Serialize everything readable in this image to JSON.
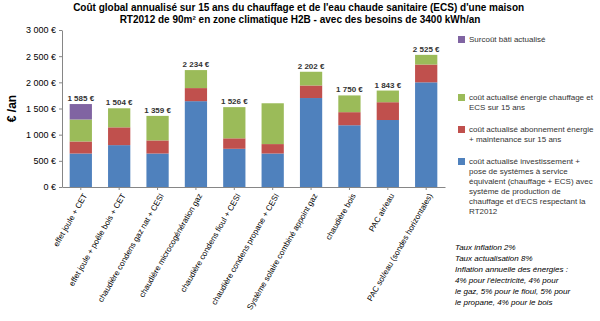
{
  "chart_data": {
    "type": "bar",
    "stacked": true,
    "title": "Coût global annualisé sur 15 ans du chauffage et de l'eau chaude sanitaire (ECS) d'une maison RT2012 de 90m² en zone climatique H2B - avec des besoins de 3400 kWh/an",
    "ylabel": "€ /an",
    "categories": [
      "effet joule + CET",
      "effet joule + poêle bois + CET",
      "chaudière condens gaz nat + CESI",
      "chaudière microcogénération gaz",
      "chaudière condens fioul + CESI",
      "chaudière condens propane + CESI",
      "Système solaire combiné appoint gaz",
      "chaudière bois",
      "PAC air/eau",
      "PAC sol/eau (sondes horizontales)"
    ],
    "series": [
      {
        "name": "coût actualisé investissement + pose de systèmes à service équivalent (chauffage + ECS) avec système de production de chauffage et d'ECS respectant la RT2012",
        "color": "#4f81bd",
        "values": [
          640,
          800,
          640,
          1640,
          730,
          640,
          1700,
          1180,
          1280,
          2000
        ]
      },
      {
        "name": "coût actualisé abonnement énergie + maintenance sur 15 ans",
        "color": "#c0504d",
        "values": [
          230,
          340,
          250,
          250,
          200,
          180,
          240,
          250,
          340,
          340
        ]
      },
      {
        "name": "coût actualisé énergie chauffage et ECS sur 15 ans",
        "color": "#9bbb59",
        "values": [
          420,
          364,
          469,
          344,
          596,
          780,
          262,
          320,
          223,
          185
        ]
      },
      {
        "name": "Surcoût bâti actualisé",
        "color": "#8064a2",
        "values": [
          295,
          null,
          null,
          null,
          null,
          null,
          null,
          null,
          null,
          null
        ]
      }
    ],
    "totals": [
      1585,
      1504,
      1359,
      2234,
      1526,
      null,
      2202,
      1750,
      1843,
      2525
    ],
    "total_labels": [
      "1 585 €",
      "1 504 €",
      "1 359 €",
      "2 234 €",
      "1 526 €",
      null,
      "2 202 €",
      "1 750 €",
      "1 843 €",
      "2 525 €"
    ],
    "ylim": [
      0,
      3000
    ],
    "yticks": [
      {
        "value": 0,
        "label": "0 €"
      },
      {
        "value": 500,
        "label": "500 €"
      },
      {
        "value": 1000,
        "label": "1 000 €"
      },
      {
        "value": 1500,
        "label": "1 500 €"
      },
      {
        "value": 2000,
        "label": "2 000 €"
      },
      {
        "value": 2500,
        "label": "2 500 €"
      },
      {
        "value": 3000,
        "label": "3 000 €"
      }
    ],
    "grid": false,
    "legend": "right",
    "annotations": [
      "Taux inflation 2%",
      "Taux actualisation 8%",
      "Inflation annuelle des énergies :",
      "4% pour l'électricité, 4% pour",
      "le gaz, 5% pour le fioul, 5% pour",
      "le propane, 4% pour le bois"
    ]
  }
}
